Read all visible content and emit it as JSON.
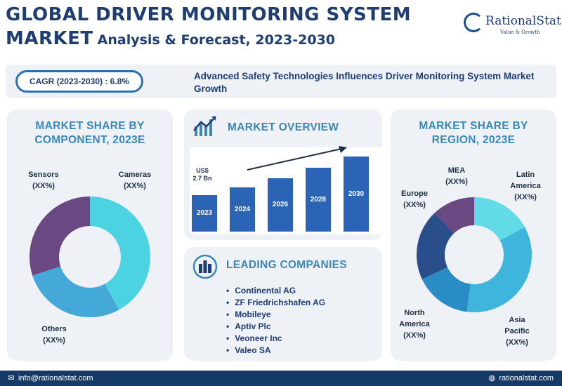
{
  "header": {
    "title_line1": "GLOBAL DRIVER MONITORING SYSTEM",
    "title_line2_big": "MARKET",
    "title_line2_small": "Analysis & Forecast, 2023-2030"
  },
  "logo": {
    "name": "RationalStat",
    "tagline": "Value & Growth",
    "accent": "#1e4c8a"
  },
  "banner": {
    "cagr": "CAGR (2023-2030) : 6.8%",
    "headline": "Advanced Safety Technologies Influences Driver Monitoring System Market Growth"
  },
  "component": {
    "title": "MARKET SHARE BY COMPONENT, 2023E",
    "segments": [
      {
        "name": "Cameras",
        "value": "(XX%)",
        "share": 0.42,
        "color": "#4cd3e2"
      },
      {
        "name": "Others",
        "value": "(XX%)",
        "share": 0.28,
        "color": "#44a8d8"
      },
      {
        "name": "Sensors",
        "value": "(XX%)",
        "share": 0.3,
        "color": "#6a4882"
      }
    ]
  },
  "overview": {
    "title": "MARKET OVERVIEW",
    "start_value_line1": "US$",
    "start_value_line2": "2.7 Bn",
    "bars": [
      {
        "year": "2023",
        "level": 0.44
      },
      {
        "year": "2024",
        "level": 0.53
      },
      {
        "year": "2026",
        "level": 0.64
      },
      {
        "year": "2028",
        "level": 0.77
      },
      {
        "year": "2030",
        "level": 0.91
      }
    ],
    "bar_color": "#2b63b5",
    "icon": "growth-chart-icon"
  },
  "companies": {
    "title": "LEADING COMPANIES",
    "icon": "buildings-icon",
    "items": [
      "Continental AG",
      "ZF Friedrichshafen AG",
      "Mobileye",
      "Aptiv Plc",
      "Veoneer Inc",
      "Valeo SA"
    ]
  },
  "region": {
    "title": "MARKET SHARE BY REGION, 2023E",
    "segments": [
      {
        "name": "Latin America",
        "value": "(XX%)",
        "share": 0.17,
        "color": "#62dbe6"
      },
      {
        "name": "Asia Pacific",
        "value": "(XX%)",
        "share": 0.35,
        "color": "#3fb4dc"
      },
      {
        "name": "North America",
        "value": "(XX%)",
        "share": 0.16,
        "color": "#2a8cc4"
      },
      {
        "name": "Europe",
        "value": "(XX%)",
        "share": 0.2,
        "color": "#294e8a"
      },
      {
        "name": "MEA",
        "value": "(XX%)",
        "share": 0.12,
        "color": "#6a4882"
      }
    ]
  },
  "footer": {
    "email": "info@rationalstat.com",
    "website": "rationalstat.com",
    "email_icon": "mail-icon",
    "website_icon": "globe-icon"
  }
}
